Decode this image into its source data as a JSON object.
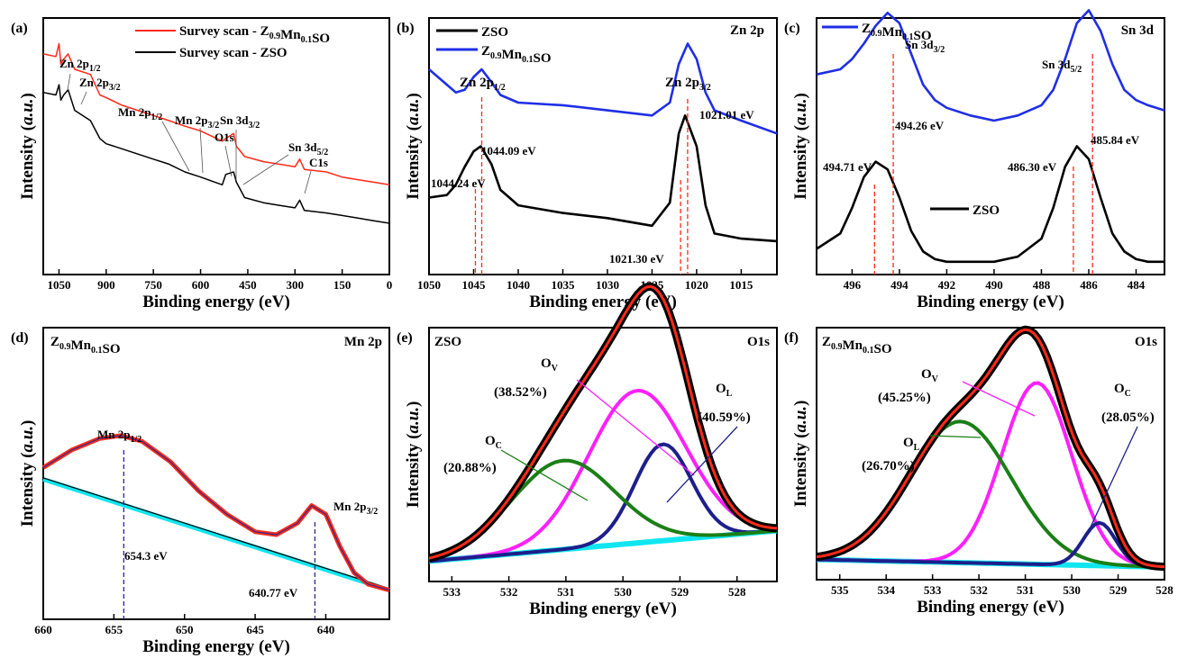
{
  "colors": {
    "red": "#ff2a1a",
    "black": "#000000",
    "blue": "#1f2ee6",
    "navy": "#1d1f8a",
    "magenta": "#ff1fff",
    "green": "#1a7f16",
    "cyan": "#10e6f0",
    "vline": "#ff2a1a",
    "vline_blue": "#2a2a8a"
  },
  "common": {
    "xlabel": "Binding energy (eV)",
    "ylabel": "Intensity (a.u.)"
  },
  "chart_data": [
    {
      "id": "a",
      "type": "line",
      "panel_label": "(a)",
      "xlabel": "Binding energy (eV)",
      "ylabel": "Intensity (a.u.)",
      "xlim": [
        1100,
        0
      ],
      "xticks": [
        "1050",
        "900",
        "750",
        "600",
        "450",
        "300",
        "150",
        "0"
      ],
      "legend": [
        "Survey scan - Z0.9Mn0.1SO",
        "Survey scan - ZSO"
      ],
      "annotations": [
        "Zn 2p1/2",
        "Zn 2p3/2",
        "Mn 2p1/2",
        "Mn 2p3/2",
        "O1s",
        "Sn 3d3/2",
        "Sn 3d5/2",
        "C1s"
      ],
      "series": [
        {
          "name": "Survey scan - Z0.9Mn0.1SO",
          "color": "red",
          "x": [
            1100,
            1060,
            1050,
            1044,
            1035,
            1021,
            1000,
            950,
            920,
            900,
            850,
            800,
            750,
            700,
            654,
            600,
            531,
            520,
            495,
            486,
            460,
            400,
            350,
            300,
            285,
            270,
            200,
            150,
            100,
            50,
            0
          ],
          "y": [
            0.86,
            0.85,
            0.9,
            0.82,
            0.84,
            0.86,
            0.8,
            0.78,
            0.7,
            0.69,
            0.66,
            0.64,
            0.62,
            0.6,
            0.58,
            0.56,
            0.52,
            0.53,
            0.55,
            0.5,
            0.46,
            0.44,
            0.43,
            0.42,
            0.45,
            0.41,
            0.4,
            0.38,
            0.37,
            0.36,
            0.35
          ]
        },
        {
          "name": "Survey scan - ZSO",
          "color": "black",
          "x": [
            1100,
            1060,
            1050,
            1044,
            1035,
            1021,
            1000,
            950,
            920,
            900,
            850,
            800,
            750,
            700,
            650,
            600,
            531,
            520,
            495,
            486,
            460,
            400,
            350,
            300,
            285,
            270,
            200,
            150,
            100,
            50,
            0
          ],
          "y": [
            0.71,
            0.7,
            0.74,
            0.68,
            0.7,
            0.72,
            0.64,
            0.6,
            0.53,
            0.51,
            0.49,
            0.47,
            0.45,
            0.43,
            0.4,
            0.38,
            0.35,
            0.39,
            0.4,
            0.36,
            0.3,
            0.28,
            0.27,
            0.26,
            0.29,
            0.25,
            0.24,
            0.23,
            0.22,
            0.21,
            0.2
          ]
        }
      ]
    },
    {
      "id": "b",
      "type": "line",
      "panel_label": "(b)",
      "title": "Zn 2p",
      "xlabel": "Binding energy (eV)",
      "ylabel": "Intensity (a.u.)",
      "xlim": [
        1050,
        1011
      ],
      "xticks": [
        "1050",
        "1045",
        "1040",
        "1035",
        "1030",
        "1025",
        "1020",
        "1015"
      ],
      "legend": [
        "ZSO",
        "Z0.9Mn0.1SO"
      ],
      "peak_labels": [
        "Zn 2p1/2",
        "Zn 2p3/2"
      ],
      "energies": [
        "1044.09 eV",
        "1021.01 eV",
        "1044.24 eV",
        "1021.30 eV"
      ],
      "series": [
        {
          "name": "Z0.9Mn0.1SO",
          "color": "blue",
          "x": [
            1050,
            1048,
            1047,
            1046,
            1045,
            1044.1,
            1043,
            1042,
            1040,
            1035,
            1030,
            1025,
            1023,
            1022,
            1021,
            1020,
            1019,
            1018,
            1015,
            1011
          ],
          "y": [
            0.8,
            0.74,
            0.71,
            0.72,
            0.77,
            0.8,
            0.75,
            0.7,
            0.67,
            0.66,
            0.64,
            0.62,
            0.67,
            0.82,
            0.9,
            0.84,
            0.71,
            0.64,
            0.6,
            0.55
          ]
        },
        {
          "name": "ZSO",
          "color": "black",
          "x": [
            1050,
            1048,
            1047,
            1046,
            1045,
            1044.2,
            1043,
            1042,
            1040,
            1035,
            1030,
            1025,
            1023,
            1022,
            1021.3,
            1020,
            1019,
            1018,
            1015,
            1011
          ],
          "y": [
            0.3,
            0.31,
            0.35,
            0.42,
            0.48,
            0.5,
            0.43,
            0.33,
            0.27,
            0.24,
            0.22,
            0.19,
            0.28,
            0.55,
            0.62,
            0.5,
            0.27,
            0.16,
            0.14,
            0.13
          ]
        }
      ]
    },
    {
      "id": "c",
      "type": "line",
      "panel_label": "(c)",
      "title": "Sn 3d",
      "xlabel": "Binding energy (eV)",
      "ylabel": "Intensity (a.u.)",
      "xlim": [
        497.5,
        482.8
      ],
      "xticks": [
        "496",
        "494",
        "492",
        "490",
        "488",
        "486",
        "484"
      ],
      "legend": [
        "Z0.9Mn0.1SO",
        "ZSO"
      ],
      "peak_labels": [
        "Sn 3d3/2",
        "Sn 3d5/2"
      ],
      "energies": [
        "494.26 eV",
        "485.84 eV",
        "494.71 eV",
        "486.30 eV"
      ],
      "series": [
        {
          "name": "Z0.9Mn0.1SO",
          "color": "blue",
          "x": [
            497.5,
            496.5,
            496,
            495.5,
            495,
            494.5,
            494,
            493.5,
            493,
            492.5,
            492,
            491,
            490,
            489,
            488,
            487.5,
            487,
            486.5,
            486,
            485.5,
            485,
            484.5,
            484,
            483.5,
            482.8
          ],
          "y": [
            0.78,
            0.8,
            0.84,
            0.9,
            0.97,
            1.02,
            0.98,
            0.86,
            0.74,
            0.68,
            0.65,
            0.62,
            0.6,
            0.62,
            0.66,
            0.72,
            0.84,
            0.98,
            1.03,
            0.95,
            0.82,
            0.72,
            0.68,
            0.66,
            0.64
          ]
        },
        {
          "name": "ZSO",
          "color": "black",
          "x": [
            497.5,
            496.5,
            496,
            495.5,
            495,
            494.5,
            494,
            493.5,
            493,
            492.5,
            492,
            491,
            490,
            489,
            488,
            487.5,
            487,
            486.5,
            486,
            485.5,
            485,
            484.5,
            484,
            483.5,
            482.8
          ],
          "y": [
            0.1,
            0.16,
            0.26,
            0.38,
            0.44,
            0.41,
            0.3,
            0.17,
            0.09,
            0.06,
            0.05,
            0.05,
            0.05,
            0.07,
            0.14,
            0.26,
            0.42,
            0.5,
            0.45,
            0.3,
            0.16,
            0.09,
            0.06,
            0.05,
            0.05
          ]
        }
      ]
    },
    {
      "id": "d",
      "type": "line",
      "panel_label": "(d)",
      "title": "Mn 2p",
      "legend_title": "Z0.9Mn0.1SO",
      "xlabel": "Binding energy (eV)",
      "ylabel": "Intensity (a.u.)",
      "xlim": [
        660,
        635.5
      ],
      "xticks": [
        "660",
        "655",
        "650",
        "645",
        "640"
      ],
      "peak_labels": [
        "Mn 2p1/2",
        "Mn 2p3/2"
      ],
      "energies": [
        "654.3 eV",
        "640.77 eV"
      ],
      "series": [
        {
          "name": "data",
          "color": "red",
          "x": [
            660,
            658,
            656,
            654.5,
            653,
            651,
            649,
            647,
            645,
            643.5,
            642,
            641,
            640,
            639,
            638,
            637,
            635.5
          ],
          "y": [
            0.52,
            0.58,
            0.62,
            0.63,
            0.61,
            0.54,
            0.44,
            0.36,
            0.3,
            0.29,
            0.33,
            0.39,
            0.36,
            0.25,
            0.16,
            0.12,
            0.1
          ]
        },
        {
          "name": "background",
          "color": "cyan",
          "x": [
            660,
            635.5
          ],
          "y": [
            0.48,
            0.1
          ]
        }
      ]
    },
    {
      "id": "e",
      "type": "line",
      "panel_label": "(e)",
      "title": "O1s",
      "legend_title": "ZSO",
      "xlabel": "Binding energy (eV)",
      "ylabel": "Intensity (a.u.)",
      "xlim": [
        533.4,
        527.3
      ],
      "xticks": [
        "533",
        "532",
        "531",
        "530",
        "529",
        "528"
      ],
      "components": [
        {
          "label": "OV",
          "pct": "(38.52%)",
          "color": "magenta"
        },
        {
          "label": "OL",
          "pct": "(40.59%)",
          "color": "navy"
        },
        {
          "label": "OC",
          "pct": "(20.88%)",
          "color": "green"
        }
      ],
      "series": [
        {
          "name": "OV",
          "color": "magenta",
          "center": 529.75,
          "amp": 0.6,
          "width": 0.85
        },
        {
          "name": "OL",
          "color": "navy",
          "center": 529.3,
          "amp": 0.38,
          "width": 0.5
        },
        {
          "name": "OC",
          "color": "green",
          "center": 531.05,
          "amp": 0.35,
          "width": 0.9
        }
      ],
      "baseline": [
        0.08,
        0.2
      ]
    },
    {
      "id": "f",
      "type": "line",
      "panel_label": "(f)",
      "title": "O1s",
      "legend_title": "Z0.9Mn0.1SO",
      "xlabel": "Binding energy (eV)",
      "ylabel": "Intensity (a.u.)",
      "xlim": [
        535.5,
        528
      ],
      "xticks": [
        "535",
        "534",
        "533",
        "532",
        "531",
        "530",
        "529",
        "528"
      ],
      "components": [
        {
          "label": "OV",
          "pct": "(45.25%)",
          "color": "magenta"
        },
        {
          "label": "OC",
          "pct": "(28.05%)",
          "color": "green"
        },
        {
          "label": "OL",
          "pct": "(26.70%)",
          "color": "navy"
        }
      ],
      "series": [
        {
          "name": "OV",
          "color": "magenta",
          "center": 530.75,
          "amp": 0.72,
          "width": 0.75
        },
        {
          "name": "OC",
          "color": "green",
          "center": 532.4,
          "amp": 0.56,
          "width": 1.1
        },
        {
          "name": "OL",
          "color": "navy",
          "center": 529.4,
          "amp": 0.17,
          "width": 0.35
        }
      ],
      "baseline": [
        0.08,
        0.05
      ]
    }
  ]
}
